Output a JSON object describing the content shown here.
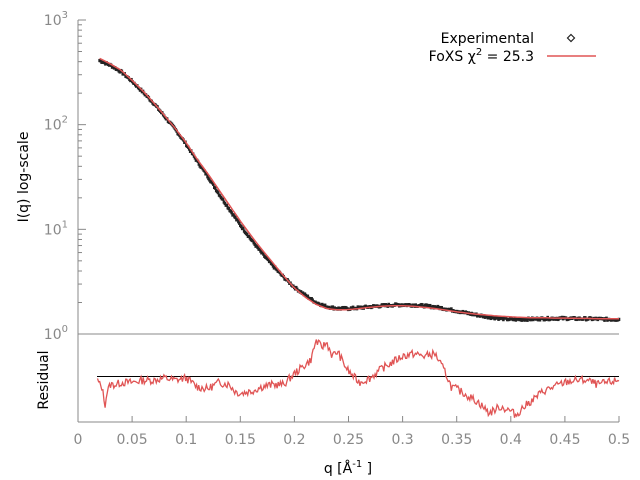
{
  "colors": {
    "experimental": "#222222",
    "fit": "#e05555",
    "residual": "#e05555",
    "axis": "#888888",
    "zero_line": "#000000"
  },
  "chart_data": [
    {
      "type": "line",
      "scale": "log-y",
      "ylabel": "I(q) log-scale",
      "xlim": [
        0,
        0.5
      ],
      "ylim": [
        1,
        1000
      ],
      "y_tick_labels": [
        {
          "base": "10",
          "exp": "0"
        },
        {
          "base": "10",
          "exp": "1"
        },
        {
          "base": "10",
          "exp": "2"
        },
        {
          "base": "10",
          "exp": "3"
        }
      ],
      "legend": {
        "placement": "top-right",
        "experimental_label": "Experimental",
        "fit_label_prefix": "FoXS χ",
        "fit_label_sup": "2",
        "fit_label_suffix": " = 25.3"
      },
      "series": [
        {
          "name": "Experimental",
          "style": "points",
          "x": [
            0.02,
            0.03,
            0.04,
            0.05,
            0.06,
            0.07,
            0.08,
            0.09,
            0.1,
            0.11,
            0.12,
            0.13,
            0.14,
            0.15,
            0.16,
            0.17,
            0.18,
            0.19,
            0.2,
            0.21,
            0.22,
            0.23,
            0.24,
            0.25,
            0.26,
            0.27,
            0.28,
            0.29,
            0.3,
            0.31,
            0.32,
            0.33,
            0.34,
            0.35,
            0.36,
            0.37,
            0.38,
            0.39,
            0.4,
            0.41,
            0.42,
            0.43,
            0.44,
            0.45,
            0.46,
            0.47,
            0.48,
            0.49,
            0.5
          ],
          "y": [
            410,
            370,
            320,
            260,
            205,
            160,
            120,
            90,
            65,
            45,
            32,
            22,
            15.5,
            11,
            8,
            5.9,
            4.5,
            3.5,
            2.8,
            2.35,
            2.0,
            1.82,
            1.75,
            1.75,
            1.78,
            1.82,
            1.86,
            1.89,
            1.9,
            1.89,
            1.86,
            1.81,
            1.74,
            1.66,
            1.58,
            1.51,
            1.45,
            1.41,
            1.38,
            1.38,
            1.39,
            1.4,
            1.41,
            1.41,
            1.4,
            1.4,
            1.39,
            1.38,
            1.38
          ]
        },
        {
          "name": "FoXS χ2 = 25.3",
          "style": "line",
          "x": [
            0.02,
            0.03,
            0.04,
            0.05,
            0.06,
            0.07,
            0.08,
            0.09,
            0.1,
            0.11,
            0.12,
            0.13,
            0.14,
            0.15,
            0.16,
            0.17,
            0.18,
            0.19,
            0.2,
            0.21,
            0.22,
            0.23,
            0.24,
            0.25,
            0.26,
            0.27,
            0.28,
            0.29,
            0.3,
            0.31,
            0.32,
            0.33,
            0.34,
            0.35,
            0.36,
            0.37,
            0.38,
            0.39,
            0.4,
            0.41,
            0.42,
            0.43,
            0.44,
            0.45,
            0.46,
            0.47,
            0.48,
            0.49,
            0.5
          ],
          "y": [
            430,
            380,
            330,
            265,
            210,
            162,
            122,
            92,
            67,
            47,
            34,
            24,
            17,
            12,
            8.7,
            6.4,
            4.8,
            3.6,
            2.75,
            2.25,
            1.92,
            1.75,
            1.7,
            1.71,
            1.75,
            1.8,
            1.84,
            1.86,
            1.86,
            1.84,
            1.8,
            1.75,
            1.69,
            1.63,
            1.58,
            1.54,
            1.51,
            1.48,
            1.46,
            1.44,
            1.43,
            1.43,
            1.42,
            1.42,
            1.41,
            1.41,
            1.4,
            1.4,
            1.4
          ]
        }
      ]
    },
    {
      "type": "line",
      "ylabel": "Residual",
      "xlabel_prefix": "q [Å",
      "xlabel_sup": "-1",
      "xlabel_suffix": " ]",
      "xlim": [
        0,
        0.5
      ],
      "ylim": [
        -1,
        1
      ],
      "x_ticks": [
        0,
        0.05,
        0.1,
        0.15,
        0.2,
        0.25,
        0.3,
        0.35,
        0.4,
        0.45,
        0.5
      ],
      "x_tick_labels": [
        "0",
        "0.05",
        "0.1",
        "0.15",
        "0.2",
        "0.25",
        "0.3",
        "0.35",
        "0.4",
        "0.45",
        "0.5"
      ],
      "series": [
        {
          "style": "line",
          "x": [
            0.018,
            0.02,
            0.022,
            0.025,
            0.027,
            0.03,
            0.035,
            0.04,
            0.05,
            0.06,
            0.07,
            0.08,
            0.09,
            0.1,
            0.11,
            0.12,
            0.13,
            0.14,
            0.145,
            0.15,
            0.16,
            0.17,
            0.18,
            0.19,
            0.2,
            0.205,
            0.21,
            0.215,
            0.22,
            0.225,
            0.23,
            0.235,
            0.24,
            0.245,
            0.25,
            0.26,
            0.27,
            0.28,
            0.29,
            0.3,
            0.31,
            0.32,
            0.33,
            0.34,
            0.345,
            0.35,
            0.36,
            0.37,
            0.38,
            0.39,
            0.4,
            0.405,
            0.41,
            0.42,
            0.43,
            0.44,
            0.45,
            0.46,
            0.47,
            0.48,
            0.49,
            0.5
          ],
          "y": [
            -0.05,
            -0.15,
            -0.2,
            -0.6,
            -0.3,
            -0.15,
            -0.15,
            -0.1,
            -0.1,
            -0.05,
            -0.05,
            0.0,
            -0.05,
            0.0,
            -0.2,
            -0.25,
            -0.1,
            -0.15,
            -0.3,
            -0.35,
            -0.3,
            -0.2,
            -0.15,
            -0.15,
            0.1,
            0.2,
            0.3,
            0.4,
            0.85,
            0.7,
            0.8,
            0.5,
            0.6,
            0.35,
            0.15,
            -0.1,
            0.0,
            0.2,
            0.35,
            0.5,
            0.55,
            0.5,
            0.55,
            0.1,
            -0.2,
            -0.25,
            -0.4,
            -0.55,
            -0.8,
            -0.65,
            -0.75,
            -0.85,
            -0.7,
            -0.5,
            -0.3,
            -0.2,
            -0.1,
            -0.05,
            -0.05,
            -0.15,
            -0.1,
            -0.05
          ]
        }
      ]
    }
  ]
}
